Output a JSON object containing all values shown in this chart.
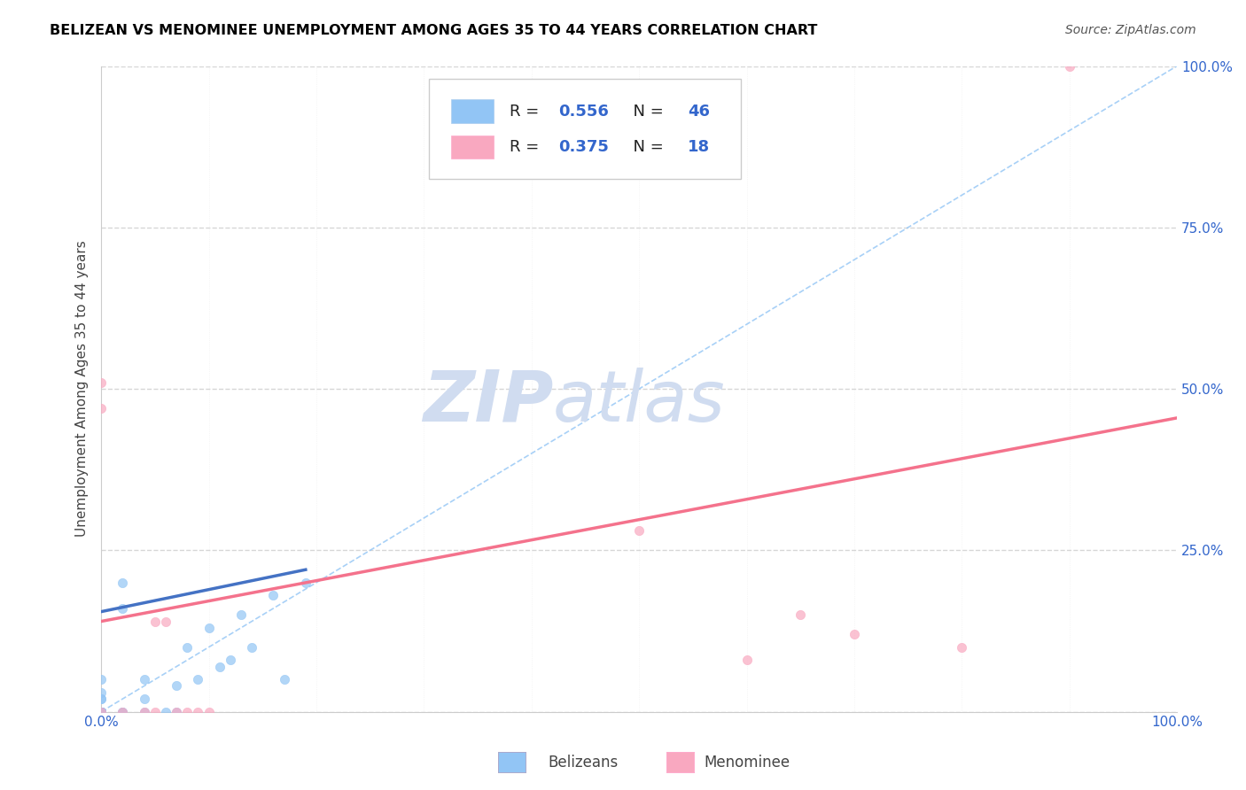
{
  "title": "BELIZEAN VS MENOMINEE UNEMPLOYMENT AMONG AGES 35 TO 44 YEARS CORRELATION CHART",
  "source_text": "Source: ZipAtlas.com",
  "ylabel": "Unemployment Among Ages 35 to 44 years",
  "xlim": [
    0,
    1
  ],
  "ylim": [
    0,
    1
  ],
  "legend_r": [
    "R = 0.556",
    "R = 0.375"
  ],
  "legend_n": [
    "N = 46",
    "N = 18"
  ],
  "belizean_color": "#92C5F5",
  "menominee_color": "#F9A8C0",
  "belizean_line_color": "#4472C4",
  "menominee_line_color": "#F4728C",
  "diagonal_color": "#92C5F5",
  "watermark_color": "#D0DCF0",
  "belizean_x": [
    0.0,
    0.0,
    0.0,
    0.0,
    0.0,
    0.0,
    0.0,
    0.0,
    0.0,
    0.0,
    0.0,
    0.0,
    0.0,
    0.0,
    0.0,
    0.0,
    0.0,
    0.0,
    0.0,
    0.0,
    0.0,
    0.0,
    0.0,
    0.0,
    0.0,
    0.0,
    0.02,
    0.02,
    0.02,
    0.02,
    0.04,
    0.04,
    0.04,
    0.06,
    0.07,
    0.07,
    0.08,
    0.09,
    0.1,
    0.11,
    0.12,
    0.13,
    0.14,
    0.16,
    0.17,
    0.19
  ],
  "belizean_y": [
    0.0,
    0.0,
    0.0,
    0.0,
    0.0,
    0.0,
    0.0,
    0.0,
    0.0,
    0.0,
    0.0,
    0.0,
    0.0,
    0.0,
    0.0,
    0.0,
    0.0,
    0.0,
    0.0,
    0.0,
    0.0,
    0.0,
    0.02,
    0.02,
    0.03,
    0.05,
    0.0,
    0.0,
    0.16,
    0.2,
    0.0,
    0.02,
    0.05,
    0.0,
    0.0,
    0.04,
    0.1,
    0.05,
    0.13,
    0.07,
    0.08,
    0.15,
    0.1,
    0.18,
    0.05,
    0.2
  ],
  "menominee_x": [
    0.0,
    0.0,
    0.0,
    0.02,
    0.04,
    0.05,
    0.05,
    0.06,
    0.07,
    0.08,
    0.09,
    0.1,
    0.5,
    0.6,
    0.65,
    0.7,
    0.8,
    0.9
  ],
  "menominee_y": [
    0.47,
    0.51,
    0.0,
    0.0,
    0.0,
    0.0,
    0.14,
    0.14,
    0.0,
    0.0,
    0.0,
    0.0,
    0.28,
    0.08,
    0.15,
    0.12,
    0.1,
    1.0
  ],
  "belizean_trend_x": [
    0.0,
    0.19
  ],
  "belizean_trend_y": [
    0.155,
    0.22
  ],
  "menominee_trend_x": [
    0.0,
    1.0
  ],
  "menominee_trend_y": [
    0.14,
    0.455
  ]
}
